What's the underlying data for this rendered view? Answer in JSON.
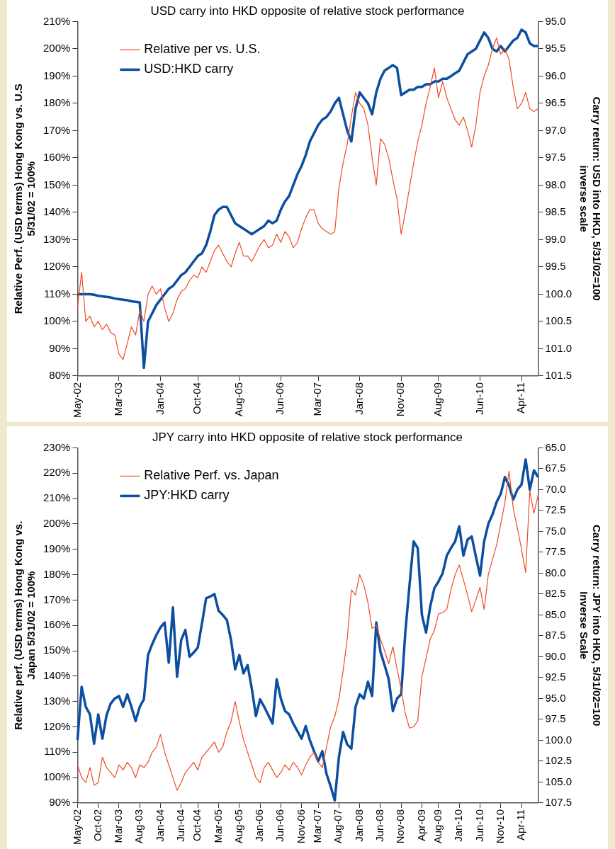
{
  "chart_data": [
    {
      "type": "line",
      "title": "USD carry into HKD opposite of relative stock performance",
      "ylabel": "Relative Perf. (USD terms) Hong Kong vs. U.S\n5/31/02 = 100%",
      "y2label": "Carry return: USD into HKD, 5/31/02=100\ninverse scale",
      "legend": "top left",
      "grid": false,
      "categories": [
        "May-02",
        null,
        null,
        null,
        null,
        null,
        null,
        null,
        null,
        null,
        "Mar-03",
        null,
        null,
        null,
        null,
        null,
        null,
        null,
        null,
        null,
        "Jan-04",
        null,
        null,
        null,
        null,
        null,
        null,
        null,
        null,
        "Oct-04",
        null,
        null,
        null,
        null,
        null,
        null,
        null,
        null,
        null,
        "Aug-05",
        null,
        null,
        null,
        null,
        null,
        null,
        null,
        null,
        null,
        "Jun-06",
        null,
        null,
        null,
        null,
        null,
        null,
        null,
        null,
        "Mar-07",
        null,
        null,
        null,
        null,
        null,
        null,
        null,
        null,
        null,
        "Jan-08",
        null,
        null,
        null,
        null,
        null,
        null,
        null,
        null,
        null,
        "Nov-08",
        null,
        null,
        null,
        null,
        null,
        null,
        null,
        null,
        "Aug-09",
        null,
        null,
        null,
        null,
        null,
        null,
        null,
        null,
        null,
        "Jun-10",
        null,
        null,
        null,
        null,
        null,
        null,
        null,
        null,
        null,
        "Apr-11",
        null,
        null,
        null,
        null
      ],
      "ylim": [
        80,
        210
      ],
      "yticks": [
        {
          "value": 80,
          "label": "80%"
        },
        {
          "value": 90,
          "label": "90%"
        },
        {
          "value": 100,
          "label": "100%"
        },
        {
          "value": 110,
          "label": "110%"
        },
        {
          "value": 120,
          "label": "120%"
        },
        {
          "value": 130,
          "label": "130%"
        },
        {
          "value": 140,
          "label": "140%"
        },
        {
          "value": 150,
          "label": "150%"
        },
        {
          "value": 160,
          "label": "160%"
        },
        {
          "value": 170,
          "label": "170%"
        },
        {
          "value": 180,
          "label": "180%"
        },
        {
          "value": 190,
          "label": "190%"
        },
        {
          "value": 200,
          "label": "200%"
        },
        {
          "value": 210,
          "label": "210%"
        }
      ],
      "y2lim": [
        101.5,
        95
      ],
      "y2ticks": [
        {
          "value": 95,
          "label": "95.0"
        },
        {
          "value": 95.5,
          "label": "95.5"
        },
        {
          "value": 96,
          "label": "96.0"
        },
        {
          "value": 96.5,
          "label": "96.5"
        },
        {
          "value": 97,
          "label": "97.0"
        },
        {
          "value": 97.5,
          "label": "97.5"
        },
        {
          "value": 98,
          "label": "98.0"
        },
        {
          "value": 98.5,
          "label": "98.5"
        },
        {
          "value": 99,
          "label": "99.0"
        },
        {
          "value": 99.5,
          "label": "99.5"
        },
        {
          "value": 100,
          "label": "100.0"
        },
        {
          "value": 100.5,
          "label": "100.5"
        },
        {
          "value": 101,
          "label": "101.0"
        },
        {
          "value": 101.5,
          "label": "101.5"
        }
      ],
      "series": [
        {
          "name": "Relative per vs. U.S.",
          "color": "#f04a22",
          "values": [
            105,
            118,
            100,
            102,
            98,
            100,
            97,
            99,
            96,
            95,
            88,
            86,
            92,
            98,
            95,
            104,
            100,
            110,
            113,
            110,
            112,
            105,
            100,
            103,
            108,
            111,
            112,
            115,
            117,
            116,
            120,
            118,
            122,
            126,
            128,
            125,
            122,
            120,
            125,
            129,
            124,
            124,
            122,
            125,
            128,
            130,
            127,
            128,
            132,
            129,
            133,
            131,
            127,
            129,
            134,
            138,
            141,
            141,
            136,
            134,
            133,
            132,
            133,
            149,
            158,
            165,
            175,
            184,
            180,
            178,
            172,
            160,
            150,
            167,
            165,
            160,
            152,
            145,
            132,
            140,
            149,
            158,
            166,
            172,
            180,
            186,
            193,
            182,
            188,
            182,
            178,
            174,
            172,
            175,
            170,
            164,
            172,
            184,
            190,
            194,
            200,
            204,
            198,
            200,
            196,
            186,
            178,
            180,
            184,
            178,
            177,
            178
          ]
        },
        {
          "name": "USD:HKD carry",
          "color": "#0c4ea0",
          "axis": "y2",
          "values": [
            100,
            100,
            100,
            100,
            100.01,
            100.03,
            100.04,
            100.05,
            100.06,
            100.08,
            100.09,
            100.1,
            100.11,
            100.13,
            100.14,
            100.15,
            101.35,
            100.5,
            100.35,
            100.2,
            100.1,
            100,
            99.9,
            99.85,
            99.75,
            99.65,
            99.6,
            99.5,
            99.4,
            99.3,
            99.25,
            99.1,
            98.85,
            98.55,
            98.45,
            98.4,
            98.4,
            98.55,
            98.7,
            98.75,
            98.8,
            98.85,
            98.9,
            98.85,
            98.8,
            98.75,
            98.65,
            98.7,
            98.65,
            98.45,
            98.3,
            98.2,
            98,
            97.8,
            97.65,
            97.45,
            97.2,
            97.05,
            96.9,
            96.8,
            96.75,
            96.65,
            96.5,
            96.4,
            96.7,
            97,
            97.2,
            96.6,
            96.3,
            96.4,
            96.5,
            96.7,
            96.3,
            96.05,
            95.9,
            95.85,
            95.8,
            95.85,
            96.35,
            96.3,
            96.25,
            96.25,
            96.2,
            96.2,
            96.15,
            96.15,
            96.1,
            96.1,
            96.05,
            96.05,
            96,
            95.95,
            95.9,
            95.75,
            95.6,
            95.55,
            95.5,
            95.35,
            95.2,
            95.3,
            95.5,
            95.55,
            95.45,
            95.55,
            95.45,
            95.35,
            95.3,
            95.15,
            95.2,
            95.4,
            95.45,
            95.45
          ]
        }
      ]
    },
    {
      "type": "line",
      "title": "JPY carry into HKD opposite of relative stock performance",
      "ylabel": "Relative perf. (USD terms) Hong Kong vs.\nJapan 5/31/02 = 100%",
      "y2label": "Carry return: JPY into HKD, 5/31/02=100\nInverse Scale",
      "legend": "top left",
      "grid": false,
      "categories": [
        "May-02",
        null,
        null,
        null,
        null,
        "Oct-02",
        null,
        null,
        null,
        null,
        "Mar-03",
        null,
        null,
        null,
        null,
        "Aug-03",
        null,
        null,
        null,
        null,
        "Jan-04",
        null,
        null,
        null,
        null,
        "Jun-04",
        null,
        null,
        null,
        "Oct-04",
        null,
        null,
        null,
        null,
        "Mar-05",
        null,
        null,
        null,
        null,
        "Aug-05",
        null,
        null,
        null,
        null,
        "Jan-06",
        null,
        null,
        null,
        null,
        "Jun-06",
        null,
        null,
        null,
        null,
        "Nov-06",
        null,
        null,
        null,
        "Mar-07",
        null,
        null,
        null,
        null,
        "Aug-07",
        null,
        null,
        null,
        null,
        "Jan-08",
        null,
        null,
        null,
        null,
        "Jun-08",
        null,
        null,
        null,
        null,
        "Nov-08",
        null,
        null,
        null,
        null,
        "Apr-09",
        null,
        null,
        null,
        "Aug-09",
        null,
        null,
        null,
        null,
        "Jan-10",
        null,
        null,
        null,
        null,
        "Jun-10",
        null,
        null,
        null,
        null,
        "Nov-10",
        null,
        null,
        null,
        null,
        "Apr-11",
        null,
        null,
        null,
        null
      ],
      "ylim": [
        90,
        230
      ],
      "yticks": [
        {
          "value": 90,
          "label": "90%"
        },
        {
          "value": 100,
          "label": "100%"
        },
        {
          "value": 110,
          "label": "110%"
        },
        {
          "value": 120,
          "label": "120%"
        },
        {
          "value": 130,
          "label": "130%"
        },
        {
          "value": 140,
          "label": "140%"
        },
        {
          "value": 150,
          "label": "150%"
        },
        {
          "value": 160,
          "label": "160%"
        },
        {
          "value": 170,
          "label": "170%"
        },
        {
          "value": 180,
          "label": "180%"
        },
        {
          "value": 190,
          "label": "190%"
        },
        {
          "value": 200,
          "label": "200%"
        },
        {
          "value": 210,
          "label": "210%"
        },
        {
          "value": 220,
          "label": "220%"
        },
        {
          "value": 230,
          "label": "230%"
        }
      ],
      "y2lim": [
        107.5,
        65
      ],
      "y2ticks": [
        {
          "value": 65,
          "label": "65.0"
        },
        {
          "value": 67.5,
          "label": "67.5"
        },
        {
          "value": 70,
          "label": "70.0"
        },
        {
          "value": 72.5,
          "label": "72.5"
        },
        {
          "value": 75,
          "label": "75.0"
        },
        {
          "value": 77.5,
          "label": "77.5"
        },
        {
          "value": 80,
          "label": "80.0"
        },
        {
          "value": 82.5,
          "label": "82.5"
        },
        {
          "value": 85,
          "label": "85.0"
        },
        {
          "value": 87.5,
          "label": "87.5"
        },
        {
          "value": 90,
          "label": "90.0"
        },
        {
          "value": 92.5,
          "label": "92.5"
        },
        {
          "value": 95,
          "label": "95.0"
        },
        {
          "value": 97.5,
          "label": "97.5"
        },
        {
          "value": 100,
          "label": "100.0"
        },
        {
          "value": 102.5,
          "label": "102.5"
        },
        {
          "value": 105,
          "label": "105.0"
        },
        {
          "value": 107.5,
          "label": "107.5"
        }
      ],
      "series": [
        {
          "name": "Relative Perf. vs. Japan",
          "color": "#f04a22",
          "values": [
            105,
            100,
            98,
            104,
            97,
            98,
            108,
            104,
            102,
            100,
            105,
            103,
            106,
            104,
            100,
            105,
            104,
            106,
            110,
            112,
            117,
            110,
            105,
            100,
            95,
            98,
            102,
            104,
            106,
            103,
            108,
            110,
            112,
            114,
            110,
            112,
            118,
            122,
            130,
            122,
            115,
            110,
            105,
            100,
            98,
            104,
            106,
            103,
            100,
            102,
            105,
            103,
            106,
            104,
            101,
            105,
            108,
            110,
            106,
            104,
            112,
            120,
            124,
            131,
            142,
            154.6,
            174,
            172,
            180,
            176,
            169,
            158.7,
            160,
            154.6,
            150,
            144.9,
            151.6,
            142.9,
            135,
            125.3,
            119.5,
            120,
            122.4,
            139.9,
            147,
            154.6,
            158,
            164.5,
            165,
            166.3,
            174.1,
            180,
            183.8,
            178,
            172,
            165.4,
            170,
            175,
            166.3,
            180,
            186,
            191.7,
            200,
            208.4,
            220.9,
            206.3,
            198.4,
            190,
            180.9,
            213,
            204.2,
            211.3
          ]
        },
        {
          "name": "JPY:HKD carry",
          "color": "#0c4ea0",
          "axis": "y2",
          "values": [
            100,
            93.6,
            96,
            96.9,
            100.4,
            96.9,
            99.8,
            97,
            95.6,
            95,
            94.7,
            96,
            94.5,
            96,
            97.7,
            96,
            95.1,
            89.8,
            88.5,
            87.4,
            86.5,
            85.9,
            90.7,
            84.1,
            92.4,
            88,
            86.8,
            90,
            89.5,
            88.9,
            86,
            83,
            82.8,
            82.5,
            84.5,
            85,
            85.6,
            88,
            91.5,
            89.8,
            92,
            91,
            93.8,
            97.1,
            95.1,
            96,
            97,
            98,
            92.7,
            95,
            96.5,
            96.9,
            98,
            98.9,
            99.8,
            98.3,
            100,
            101.3,
            102.5,
            101.3,
            104,
            105.5,
            107.2,
            102,
            99,
            100.5,
            101,
            96,
            94.5,
            95,
            93,
            94.7,
            85.9,
            89.4,
            91,
            92.7,
            96.5,
            95,
            94.5,
            87.1,
            81.5,
            76.2,
            77,
            85,
            87.1,
            84,
            81.8,
            81,
            80,
            77.9,
            77,
            76.2,
            74.4,
            77.9,
            76,
            75.6,
            78,
            80.3,
            76.2,
            74.1,
            73,
            71.5,
            70.5,
            68.5,
            69.5,
            71.2,
            70,
            69.4,
            66.4,
            70,
            67.7,
            68.5
          ]
        }
      ]
    }
  ]
}
